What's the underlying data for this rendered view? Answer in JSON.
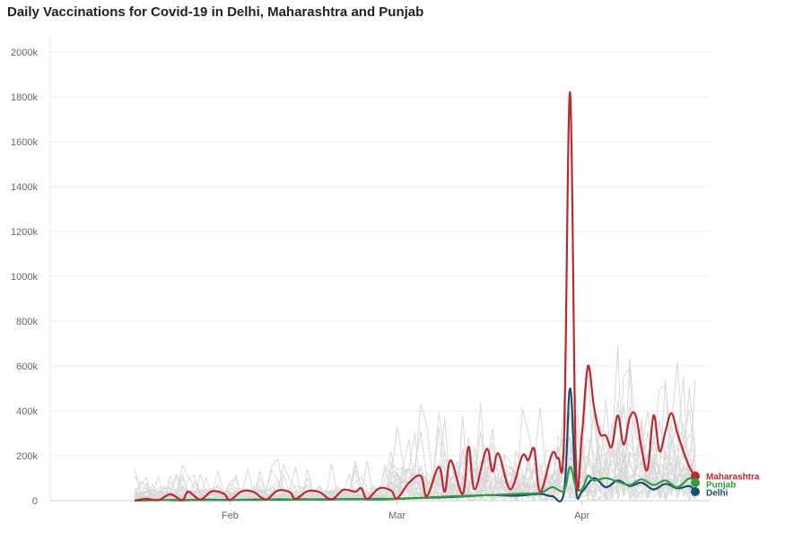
{
  "chart_data": {
    "type": "line",
    "title": "Daily Vaccinations for Covid-19 in Delhi, Maharashtra and Punjab",
    "xlabel": "",
    "ylabel": "",
    "x_axis": {
      "type": "date",
      "range": [
        "2021-01-16",
        "2021-04-20"
      ],
      "tick_labels": [
        {
          "date": "2021-02-01",
          "label": "Feb"
        },
        {
          "date": "2021-03-01",
          "label": "Mar"
        },
        {
          "date": "2021-04-01",
          "label": "Apr"
        }
      ]
    },
    "y_axis": {
      "range": [
        0,
        2000000
      ],
      "ticks": [
        {
          "value": 0,
          "label": "0"
        },
        {
          "value": 200000,
          "label": "200k"
        },
        {
          "value": 400000,
          "label": "400k"
        },
        {
          "value": 600000,
          "label": "600k"
        },
        {
          "value": 800000,
          "label": "800k"
        },
        {
          "value": 1000000,
          "label": "1000k"
        },
        {
          "value": 1200000,
          "label": "1200k"
        },
        {
          "value": 1400000,
          "label": "1400k"
        },
        {
          "value": 1600000,
          "label": "1600k"
        },
        {
          "value": 1800000,
          "label": "1800k"
        },
        {
          "value": 2000000,
          "label": "2000k"
        }
      ]
    },
    "grid": true,
    "legend": "end-of-line labels, right",
    "background_series_color": "#d9d9d9",
    "series": [
      {
        "name": "Maharashtra",
        "color": "#c0272d",
        "points": [
          [
            "2021-01-16",
            500
          ],
          [
            "2021-01-18",
            8000
          ],
          [
            "2021-01-20",
            2000
          ],
          [
            "2021-01-22",
            28000
          ],
          [
            "2021-01-24",
            3000
          ],
          [
            "2021-01-25",
            40000
          ],
          [
            "2021-01-27",
            5000
          ],
          [
            "2021-01-29",
            42000
          ],
          [
            "2021-01-31",
            30000
          ],
          [
            "2021-02-01",
            3000
          ],
          [
            "2021-02-03",
            42000
          ],
          [
            "2021-02-05",
            38000
          ],
          [
            "2021-02-07",
            5000
          ],
          [
            "2021-02-09",
            45000
          ],
          [
            "2021-02-11",
            38000
          ],
          [
            "2021-02-12",
            8000
          ],
          [
            "2021-02-14",
            42000
          ],
          [
            "2021-02-16",
            38000
          ],
          [
            "2021-02-18",
            5000
          ],
          [
            "2021-02-20",
            48000
          ],
          [
            "2021-02-22",
            40000
          ],
          [
            "2021-02-23",
            55000
          ],
          [
            "2021-02-24",
            8000
          ],
          [
            "2021-02-26",
            55000
          ],
          [
            "2021-02-28",
            45000
          ],
          [
            "2021-03-01",
            10000
          ],
          [
            "2021-03-03",
            80000
          ],
          [
            "2021-03-05",
            110000
          ],
          [
            "2021-03-06",
            20000
          ],
          [
            "2021-03-08",
            150000
          ],
          [
            "2021-03-09",
            40000
          ],
          [
            "2021-03-10",
            180000
          ],
          [
            "2021-03-12",
            30000
          ],
          [
            "2021-03-13",
            240000
          ],
          [
            "2021-03-14",
            50000
          ],
          [
            "2021-03-16",
            230000
          ],
          [
            "2021-03-17",
            130000
          ],
          [
            "2021-03-18",
            210000
          ],
          [
            "2021-03-20",
            50000
          ],
          [
            "2021-03-22",
            200000
          ],
          [
            "2021-03-23",
            180000
          ],
          [
            "2021-03-24",
            230000
          ],
          [
            "2021-03-25",
            40000
          ],
          [
            "2021-03-27",
            210000
          ],
          [
            "2021-03-28",
            190000
          ],
          [
            "2021-03-29",
            280000
          ],
          [
            "2021-03-30",
            1820000
          ],
          [
            "2021-03-31",
            150000
          ],
          [
            "2021-04-01",
            300000
          ],
          [
            "2021-04-02",
            600000
          ],
          [
            "2021-04-03",
            420000
          ],
          [
            "2021-04-04",
            300000
          ],
          [
            "2021-04-05",
            290000
          ],
          [
            "2021-04-06",
            240000
          ],
          [
            "2021-04-07",
            380000
          ],
          [
            "2021-04-08",
            250000
          ],
          [
            "2021-04-09",
            370000
          ],
          [
            "2021-04-10",
            380000
          ],
          [
            "2021-04-11",
            230000
          ],
          [
            "2021-04-12",
            140000
          ],
          [
            "2021-04-13",
            380000
          ],
          [
            "2021-04-14",
            220000
          ],
          [
            "2021-04-15",
            310000
          ],
          [
            "2021-04-16",
            390000
          ],
          [
            "2021-04-17",
            300000
          ],
          [
            "2021-04-18",
            220000
          ],
          [
            "2021-04-19",
            150000
          ],
          [
            "2021-04-20",
            110000
          ]
        ]
      },
      {
        "name": "Punjab",
        "color": "#2e9e3e",
        "points": [
          [
            "2021-01-16",
            500
          ],
          [
            "2021-01-20",
            2000
          ],
          [
            "2021-01-24",
            3500
          ],
          [
            "2021-01-28",
            2500
          ],
          [
            "2021-02-01",
            4000
          ],
          [
            "2021-02-05",
            3000
          ],
          [
            "2021-02-09",
            6000
          ],
          [
            "2021-02-13",
            5000
          ],
          [
            "2021-02-17",
            7000
          ],
          [
            "2021-02-21",
            6000
          ],
          [
            "2021-02-25",
            8000
          ],
          [
            "2021-03-01",
            9000
          ],
          [
            "2021-03-05",
            13000
          ],
          [
            "2021-03-09",
            18000
          ],
          [
            "2021-03-13",
            22000
          ],
          [
            "2021-03-17",
            25000
          ],
          [
            "2021-03-21",
            30000
          ],
          [
            "2021-03-25",
            35000
          ],
          [
            "2021-03-27",
            60000
          ],
          [
            "2021-03-29",
            45000
          ],
          [
            "2021-03-30",
            150000
          ],
          [
            "2021-03-31",
            60000
          ],
          [
            "2021-04-01",
            50000
          ],
          [
            "2021-04-02",
            110000
          ],
          [
            "2021-04-03",
            90000
          ],
          [
            "2021-04-05",
            100000
          ],
          [
            "2021-04-07",
            85000
          ],
          [
            "2021-04-09",
            70000
          ],
          [
            "2021-04-11",
            95000
          ],
          [
            "2021-04-13",
            70000
          ],
          [
            "2021-04-15",
            90000
          ],
          [
            "2021-04-17",
            60000
          ],
          [
            "2021-04-19",
            100000
          ],
          [
            "2021-04-20",
            80000
          ]
        ]
      },
      {
        "name": "Delhi",
        "color": "#1b4f72",
        "points": [
          [
            "2021-01-16",
            500
          ],
          [
            "2021-01-20",
            3000
          ],
          [
            "2021-01-24",
            1500
          ],
          [
            "2021-01-28",
            4000
          ],
          [
            "2021-02-01",
            3000
          ],
          [
            "2021-02-05",
            5000
          ],
          [
            "2021-02-09",
            4000
          ],
          [
            "2021-02-13",
            6000
          ],
          [
            "2021-02-17",
            5000
          ],
          [
            "2021-02-21",
            7000
          ],
          [
            "2021-02-25",
            6000
          ],
          [
            "2021-03-01",
            8000
          ],
          [
            "2021-03-05",
            12000
          ],
          [
            "2021-03-09",
            15000
          ],
          [
            "2021-03-13",
            20000
          ],
          [
            "2021-03-17",
            25000
          ],
          [
            "2021-03-21",
            22000
          ],
          [
            "2021-03-25",
            30000
          ],
          [
            "2021-03-27",
            20000
          ],
          [
            "2021-03-29",
            40000
          ],
          [
            "2021-03-30",
            500000
          ],
          [
            "2021-03-31",
            50000
          ],
          [
            "2021-04-01",
            40000
          ],
          [
            "2021-04-03",
            100000
          ],
          [
            "2021-04-05",
            60000
          ],
          [
            "2021-04-07",
            90000
          ],
          [
            "2021-04-09",
            65000
          ],
          [
            "2021-04-11",
            80000
          ],
          [
            "2021-04-13",
            50000
          ],
          [
            "2021-04-15",
            75000
          ],
          [
            "2021-04-17",
            55000
          ],
          [
            "2021-04-19",
            65000
          ],
          [
            "2021-04-20",
            40000
          ]
        ]
      }
    ]
  }
}
